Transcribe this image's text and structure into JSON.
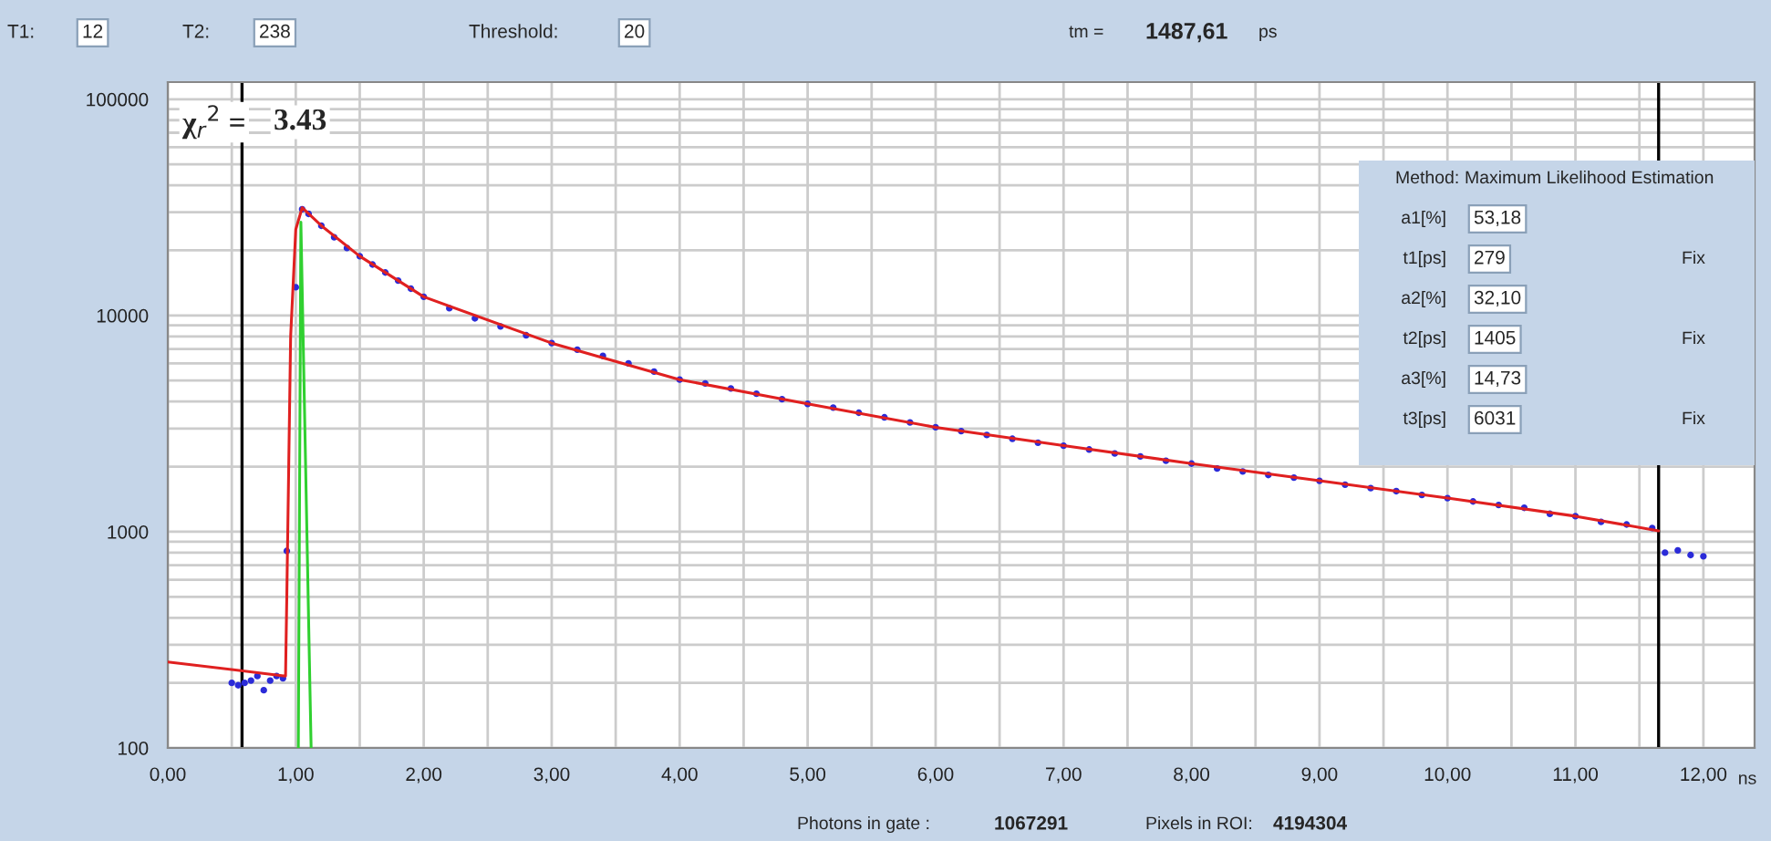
{
  "chart_data": {
    "type": "scatter",
    "xlabel": "ns",
    "log": "y",
    "grid": true,
    "xlim": [
      0,
      12.4
    ],
    "ylim": [
      100,
      120000
    ],
    "xticks": [
      {
        "value": 0,
        "label": "0,00"
      },
      {
        "value": 0.5,
        "label": null
      },
      {
        "value": 1,
        "label": "1,00"
      },
      {
        "value": 1.5,
        "label": null
      },
      {
        "value": 2,
        "label": "2,00"
      },
      {
        "value": 2.5,
        "label": null
      },
      {
        "value": 3,
        "label": "3,00"
      },
      {
        "value": 3.5,
        "label": null
      },
      {
        "value": 4,
        "label": "4,00"
      },
      {
        "value": 4.5,
        "label": null
      },
      {
        "value": 5,
        "label": "5,00"
      },
      {
        "value": 5.5,
        "label": null
      },
      {
        "value": 6,
        "label": "6,00"
      },
      {
        "value": 6.5,
        "label": null
      },
      {
        "value": 7,
        "label": "7,00"
      },
      {
        "value": 7.5,
        "label": null
      },
      {
        "value": 8,
        "label": "8,00"
      },
      {
        "value": 8.5,
        "label": null
      },
      {
        "value": 9,
        "label": "9,00"
      },
      {
        "value": 9.5,
        "label": null
      },
      {
        "value": 10,
        "label": "10,00"
      },
      {
        "value": 10.5,
        "label": null
      },
      {
        "value": 11,
        "label": "11,00"
      },
      {
        "value": 11.5,
        "label": null
      },
      {
        "value": 12,
        "label": "12,00"
      }
    ],
    "yticks": [
      100,
      1000,
      10000,
      100000
    ],
    "series": [
      {
        "marker": "circle",
        "color": "#2b2bd8",
        "x": [
          0.5,
          0.55,
          0.6,
          0.65,
          0.7,
          0.75,
          0.8,
          0.85,
          0.9,
          0.93,
          1.0,
          1.05,
          1.1,
          1.2,
          1.3,
          1.4,
          1.5,
          1.6,
          1.7,
          1.8,
          1.9,
          2.0,
          2.2,
          2.4,
          2.6,
          2.8,
          3.0,
          3.2,
          3.4,
          3.6,
          3.8,
          4.0,
          4.2,
          4.4,
          4.6,
          4.8,
          5.0,
          5.2,
          5.4,
          5.6,
          5.8,
          6.0,
          6.2,
          6.4,
          6.6,
          6.8,
          7.0,
          7.2,
          7.4,
          7.6,
          7.8,
          8.0,
          8.2,
          8.4,
          8.6,
          8.8,
          9.0,
          9.2,
          9.4,
          9.6,
          9.8,
          10.0,
          10.2,
          10.4,
          10.6,
          10.8,
          11.0,
          11.2,
          11.4,
          11.6,
          11.7,
          11.8,
          11.9,
          12.0
        ],
        "values": [
          200,
          195,
          200,
          205,
          215,
          185,
          205,
          215,
          210,
          815,
          13500,
          31000,
          29500,
          26000,
          23000,
          20500,
          18800,
          17200,
          15800,
          14500,
          13300,
          12200,
          10800,
          9700,
          8900,
          8100,
          7450,
          6950,
          6500,
          6000,
          5500,
          5050,
          4850,
          4600,
          4350,
          4100,
          3900,
          3750,
          3550,
          3380,
          3200,
          3040,
          2920,
          2800,
          2690,
          2580,
          2500,
          2400,
          2300,
          2230,
          2130,
          2065,
          1960,
          1900,
          1830,
          1780,
          1720,
          1650,
          1590,
          1540,
          1480,
          1430,
          1380,
          1330,
          1290,
          1210,
          1180,
          1110,
          1080,
          1040,
          800,
          820,
          780,
          770
        ]
      },
      {
        "type": "line",
        "color": "#e02020",
        "x": [
          0,
          0.92,
          0.93,
          0.96,
          1.0,
          1.05,
          1.2,
          1.5,
          2.0,
          3.0,
          4.0,
          5.0,
          6.0,
          7.0,
          8.0,
          9.0,
          10.0,
          11.0,
          11.65
        ],
        "values": [
          250,
          215,
          500,
          8000,
          25000,
          31500,
          26000,
          18800,
          12200,
          7450,
          5050,
          3900,
          3040,
          2500,
          2065,
          1720,
          1430,
          1180,
          1010
        ]
      },
      {
        "type": "line",
        "color": "#30d030",
        "x": [
          1.02,
          1.04,
          1.1,
          1.12
        ],
        "values": [
          100,
          27000,
          400,
          100
        ]
      }
    ],
    "ref_lines": [
      {
        "axis": "x",
        "value": 0.58,
        "color": "#000000"
      },
      {
        "axis": "x",
        "value": 11.65,
        "color": "#000000"
      }
    ],
    "annotations": [
      "T1:",
      "12",
      "T2:",
      "238",
      "Threshold:",
      "20",
      "tm =",
      "1487,61",
      "ps",
      "χ$_{r}$$^{2}$ =",
      "3.43",
      "Method:",
      "Maximum Likelihood Estimation",
      "a1[%]",
      "53,18",
      "t1[ps]",
      "279",
      "Fix",
      "a2[%]",
      "32,10",
      "t2[ps]",
      "1405",
      "Fix",
      "a3[%]",
      "14,73",
      "t3[ps]",
      "6031",
      "Fix",
      "Photons in gate :",
      "1067291",
      "Pixels in ROI:",
      "4194304"
    ]
  }
}
